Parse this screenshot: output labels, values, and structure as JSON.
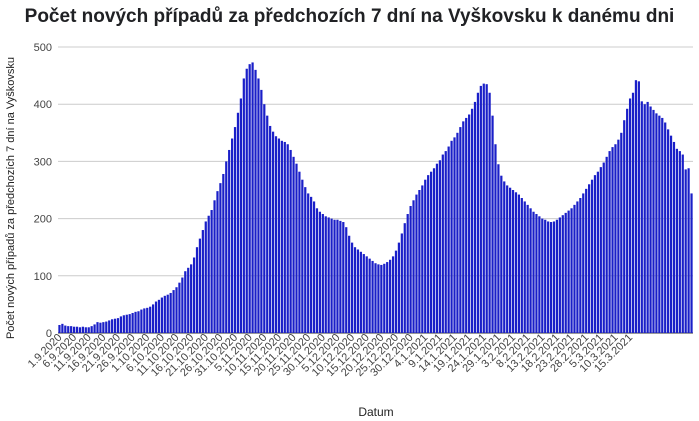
{
  "chart_data": {
    "type": "bar",
    "title": "Počet nových případů za předchozích 7 dní na Vyškovsku k danému dni",
    "xlabel": "Datum",
    "ylabel": "Počet nových případů za předchozích 7 dní na Vyškovsku",
    "ylim": [
      0,
      500
    ],
    "yticks": [
      0,
      100,
      200,
      300,
      400,
      500
    ],
    "grid": true,
    "legend": "none",
    "bar_color": "#1a1fc8",
    "x_start": "2020-09-01",
    "x_step_days": 1,
    "x_tick_labels": [
      "1.9.2020",
      "6.9.2020",
      "11.9.2020",
      "16.9.2020",
      "21.9.2020",
      "26.9.2020",
      "1.10.2020",
      "6.10.2020",
      "11.10.2020",
      "16.10.2020",
      "21.10.2020",
      "26.10.2020",
      "31.10.2020",
      "5.11.2020",
      "10.11.2020",
      "15.11.2020",
      "20.11.2020",
      "25.11.2020",
      "30.11.2020",
      "5.12.2020",
      "10.12.2020",
      "15.12.2020",
      "20.12.2020",
      "25.12.2020",
      "30.12.2020",
      "4.1.2021",
      "9.1.2021",
      "14.1.2021",
      "19.1.2021",
      "24.1.2021",
      "29.1.2021",
      "3.2.2021",
      "8.2.2021",
      "13.2.2021",
      "18.2.2021",
      "23.2.2021",
      "28.2.2021",
      "5.3.2021",
      "10.3.2021",
      "15.3.2021"
    ],
    "values": [
      14,
      16,
      13,
      12,
      12,
      11,
      11,
      10,
      11,
      10,
      10,
      12,
      15,
      19,
      18,
      19,
      20,
      22,
      24,
      25,
      26,
      29,
      31,
      32,
      33,
      35,
      37,
      38,
      41,
      43,
      44,
      46,
      50,
      55,
      58,
      62,
      65,
      67,
      70,
      75,
      80,
      88,
      97,
      108,
      114,
      120,
      132,
      150,
      165,
      180,
      195,
      205,
      215,
      232,
      248,
      262,
      278,
      300,
      320,
      340,
      360,
      385,
      410,
      445,
      462,
      470,
      473,
      460,
      445,
      425,
      400,
      380,
      362,
      352,
      344,
      340,
      336,
      334,
      330,
      320,
      308,
      296,
      282,
      268,
      255,
      244,
      238,
      230,
      218,
      212,
      208,
      204,
      202,
      200,
      198,
      198,
      196,
      194,
      185,
      170,
      158,
      150,
      146,
      142,
      138,
      134,
      130,
      126,
      122,
      120,
      119,
      121,
      124,
      128,
      134,
      144,
      158,
      174,
      192,
      208,
      222,
      232,
      242,
      250,
      258,
      268,
      276,
      282,
      288,
      296,
      302,
      312,
      318,
      326,
      336,
      342,
      350,
      360,
      370,
      376,
      382,
      392,
      404,
      420,
      432,
      436,
      435,
      420,
      380,
      330,
      295,
      275,
      265,
      258,
      254,
      250,
      246,
      242,
      236,
      230,
      224,
      218,
      212,
      208,
      204,
      200,
      198,
      195,
      194,
      195,
      198,
      202,
      206,
      210,
      214,
      218,
      224,
      230,
      236,
      244,
      252,
      260,
      268,
      276,
      282,
      290,
      298,
      308,
      318,
      325,
      330,
      338,
      350,
      372,
      392,
      410,
      420,
      442,
      440,
      405,
      400,
      404,
      396,
      390,
      384,
      380,
      376,
      368,
      356,
      345,
      334,
      322,
      318,
      312,
      286,
      288,
      244
    ]
  }
}
